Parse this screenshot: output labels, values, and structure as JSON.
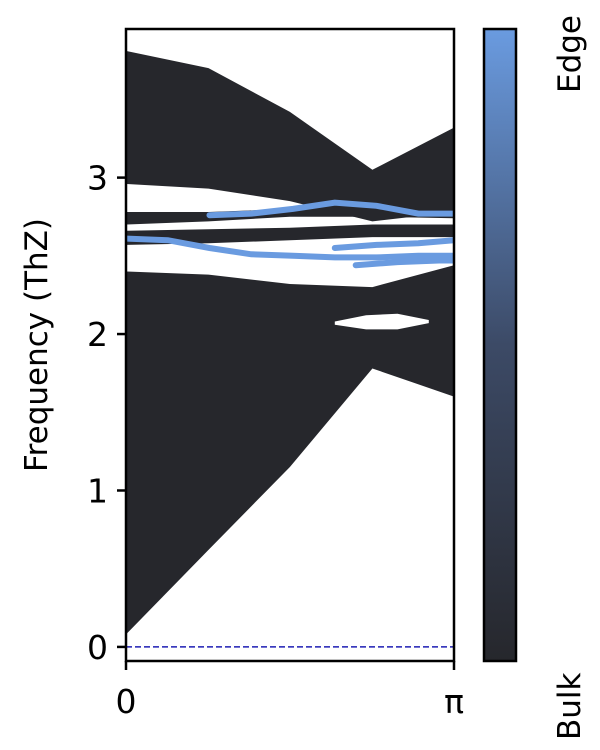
{
  "chart_data": {
    "type": "line",
    "title": "",
    "xlabel": "",
    "ylabel": "Frequency (ThZ)",
    "xlim": [
      0,
      3.14159
    ],
    "ylim": [
      -0.09,
      3.95
    ],
    "x_ticks": [
      {
        "value": 0,
        "label": "0"
      },
      {
        "value": 3.14159,
        "label": "π"
      }
    ],
    "y_ticks": [
      {
        "value": 0,
        "label": "0"
      },
      {
        "value": 1,
        "label": "1"
      },
      {
        "value": 2,
        "label": "2"
      },
      {
        "value": 3,
        "label": "3"
      }
    ],
    "reference_line": {
      "y": 0,
      "style": "dashed",
      "color": "#1f1fb4"
    },
    "colors": {
      "bulk": "#26272c",
      "edge": "#6a9be0",
      "bulk_mid": "#2f3440"
    },
    "colorbar": {
      "min_label": "Bulk",
      "max_label": "Edge"
    },
    "bulk_band_envelopes": [
      {
        "x": [
          0,
          0.79,
          1.57,
          2.36,
          3.14159
        ],
        "lower": [
          0.08,
          0.62,
          1.15,
          1.78,
          1.6
        ],
        "upper": [
          2.4,
          2.38,
          2.32,
          2.3,
          2.44
        ]
      },
      {
        "x": [
          0,
          0.79,
          1.57,
          2.36,
          3.14159
        ],
        "lower": [
          2.57,
          2.58,
          2.6,
          2.62,
          2.62
        ],
        "upper": [
          2.66,
          2.67,
          2.68,
          2.7,
          2.7
        ]
      },
      {
        "x": [
          0,
          0.79,
          1.57,
          2.36,
          3.14159
        ],
        "lower": [
          2.7,
          2.72,
          2.75,
          2.75,
          2.74
        ],
        "upper": [
          2.78,
          2.78,
          2.8,
          2.82,
          2.83
        ]
      },
      {
        "x": [
          0,
          0.79,
          1.57,
          2.36,
          3.14159
        ],
        "lower": [
          2.96,
          2.93,
          2.85,
          2.72,
          2.78
        ],
        "upper": [
          3.81,
          3.7,
          3.42,
          3.05,
          3.32
        ]
      }
    ],
    "edge_bands": [
      {
        "x": [
          0,
          0.4,
          0.8,
          1.2,
          1.6,
          2.0,
          2.4,
          2.8,
          3.14159
        ],
        "y": [
          2.61,
          2.6,
          2.55,
          2.51,
          2.5,
          2.49,
          2.49,
          2.5,
          2.5
        ]
      },
      {
        "x": [
          0.8,
          1.2,
          1.6,
          2.0,
          2.4,
          2.8,
          3.14159
        ],
        "y": [
          2.76,
          2.77,
          2.8,
          2.84,
          2.82,
          2.77,
          2.77
        ]
      },
      {
        "x": [
          2.0,
          2.4,
          2.8,
          3.14159
        ],
        "y": [
          2.55,
          2.57,
          2.58,
          2.6
        ]
      },
      {
        "x": [
          2.2,
          2.6,
          3.0,
          3.14159
        ],
        "y": [
          2.44,
          2.46,
          2.47,
          2.47
        ]
      }
    ],
    "gaps": [
      {
        "x": [
          2.0,
          2.3,
          2.6,
          2.9
        ],
        "lower": [
          2.06,
          2.03,
          2.03,
          2.07
        ],
        "upper": [
          2.08,
          2.12,
          2.13,
          2.09
        ]
      }
    ]
  }
}
